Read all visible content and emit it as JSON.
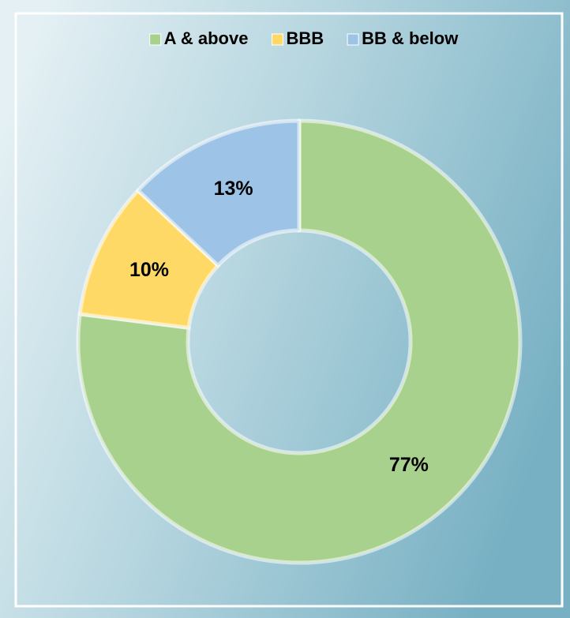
{
  "chart_data": {
    "type": "pie",
    "donut": true,
    "categories": [
      "A & above",
      "BBB",
      "BB & below"
    ],
    "values": [
      77,
      10,
      13
    ],
    "value_labels": [
      "77%",
      "10%",
      "13%"
    ],
    "colors": [
      "#a9d18e",
      "#ffd966",
      "#9dc3e6"
    ],
    "legend": "top"
  }
}
